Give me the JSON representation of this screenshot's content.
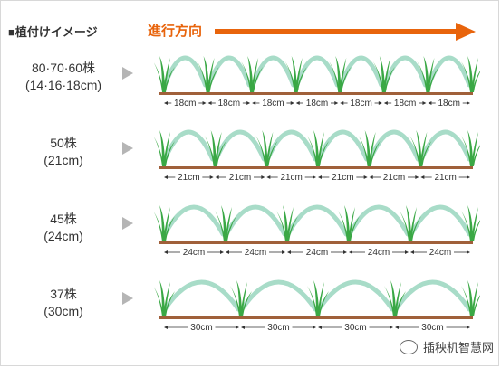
{
  "header": {
    "title": "■植付けイメージ",
    "direction_label": "進行方向"
  },
  "colors": {
    "accent": "#e8640c",
    "arc": "#a8dcc8",
    "plant": "#3aa845",
    "ground": "#a0603a"
  },
  "rows": [
    {
      "label_line1": "80·70·60株",
      "label_line2": "(14·16·18cm)",
      "spacing": "18cm",
      "segments": 7
    },
    {
      "label_line1": "50株",
      "label_line2": "(21cm)",
      "spacing": "21cm",
      "segments": 6
    },
    {
      "label_line1": "45株",
      "label_line2": "(24cm)",
      "spacing": "24cm",
      "segments": 5
    },
    {
      "label_line1": "37株",
      "label_line2": "(30cm)",
      "spacing": "30cm",
      "segments": 4
    }
  ],
  "watermark": "插秧机智慧网"
}
